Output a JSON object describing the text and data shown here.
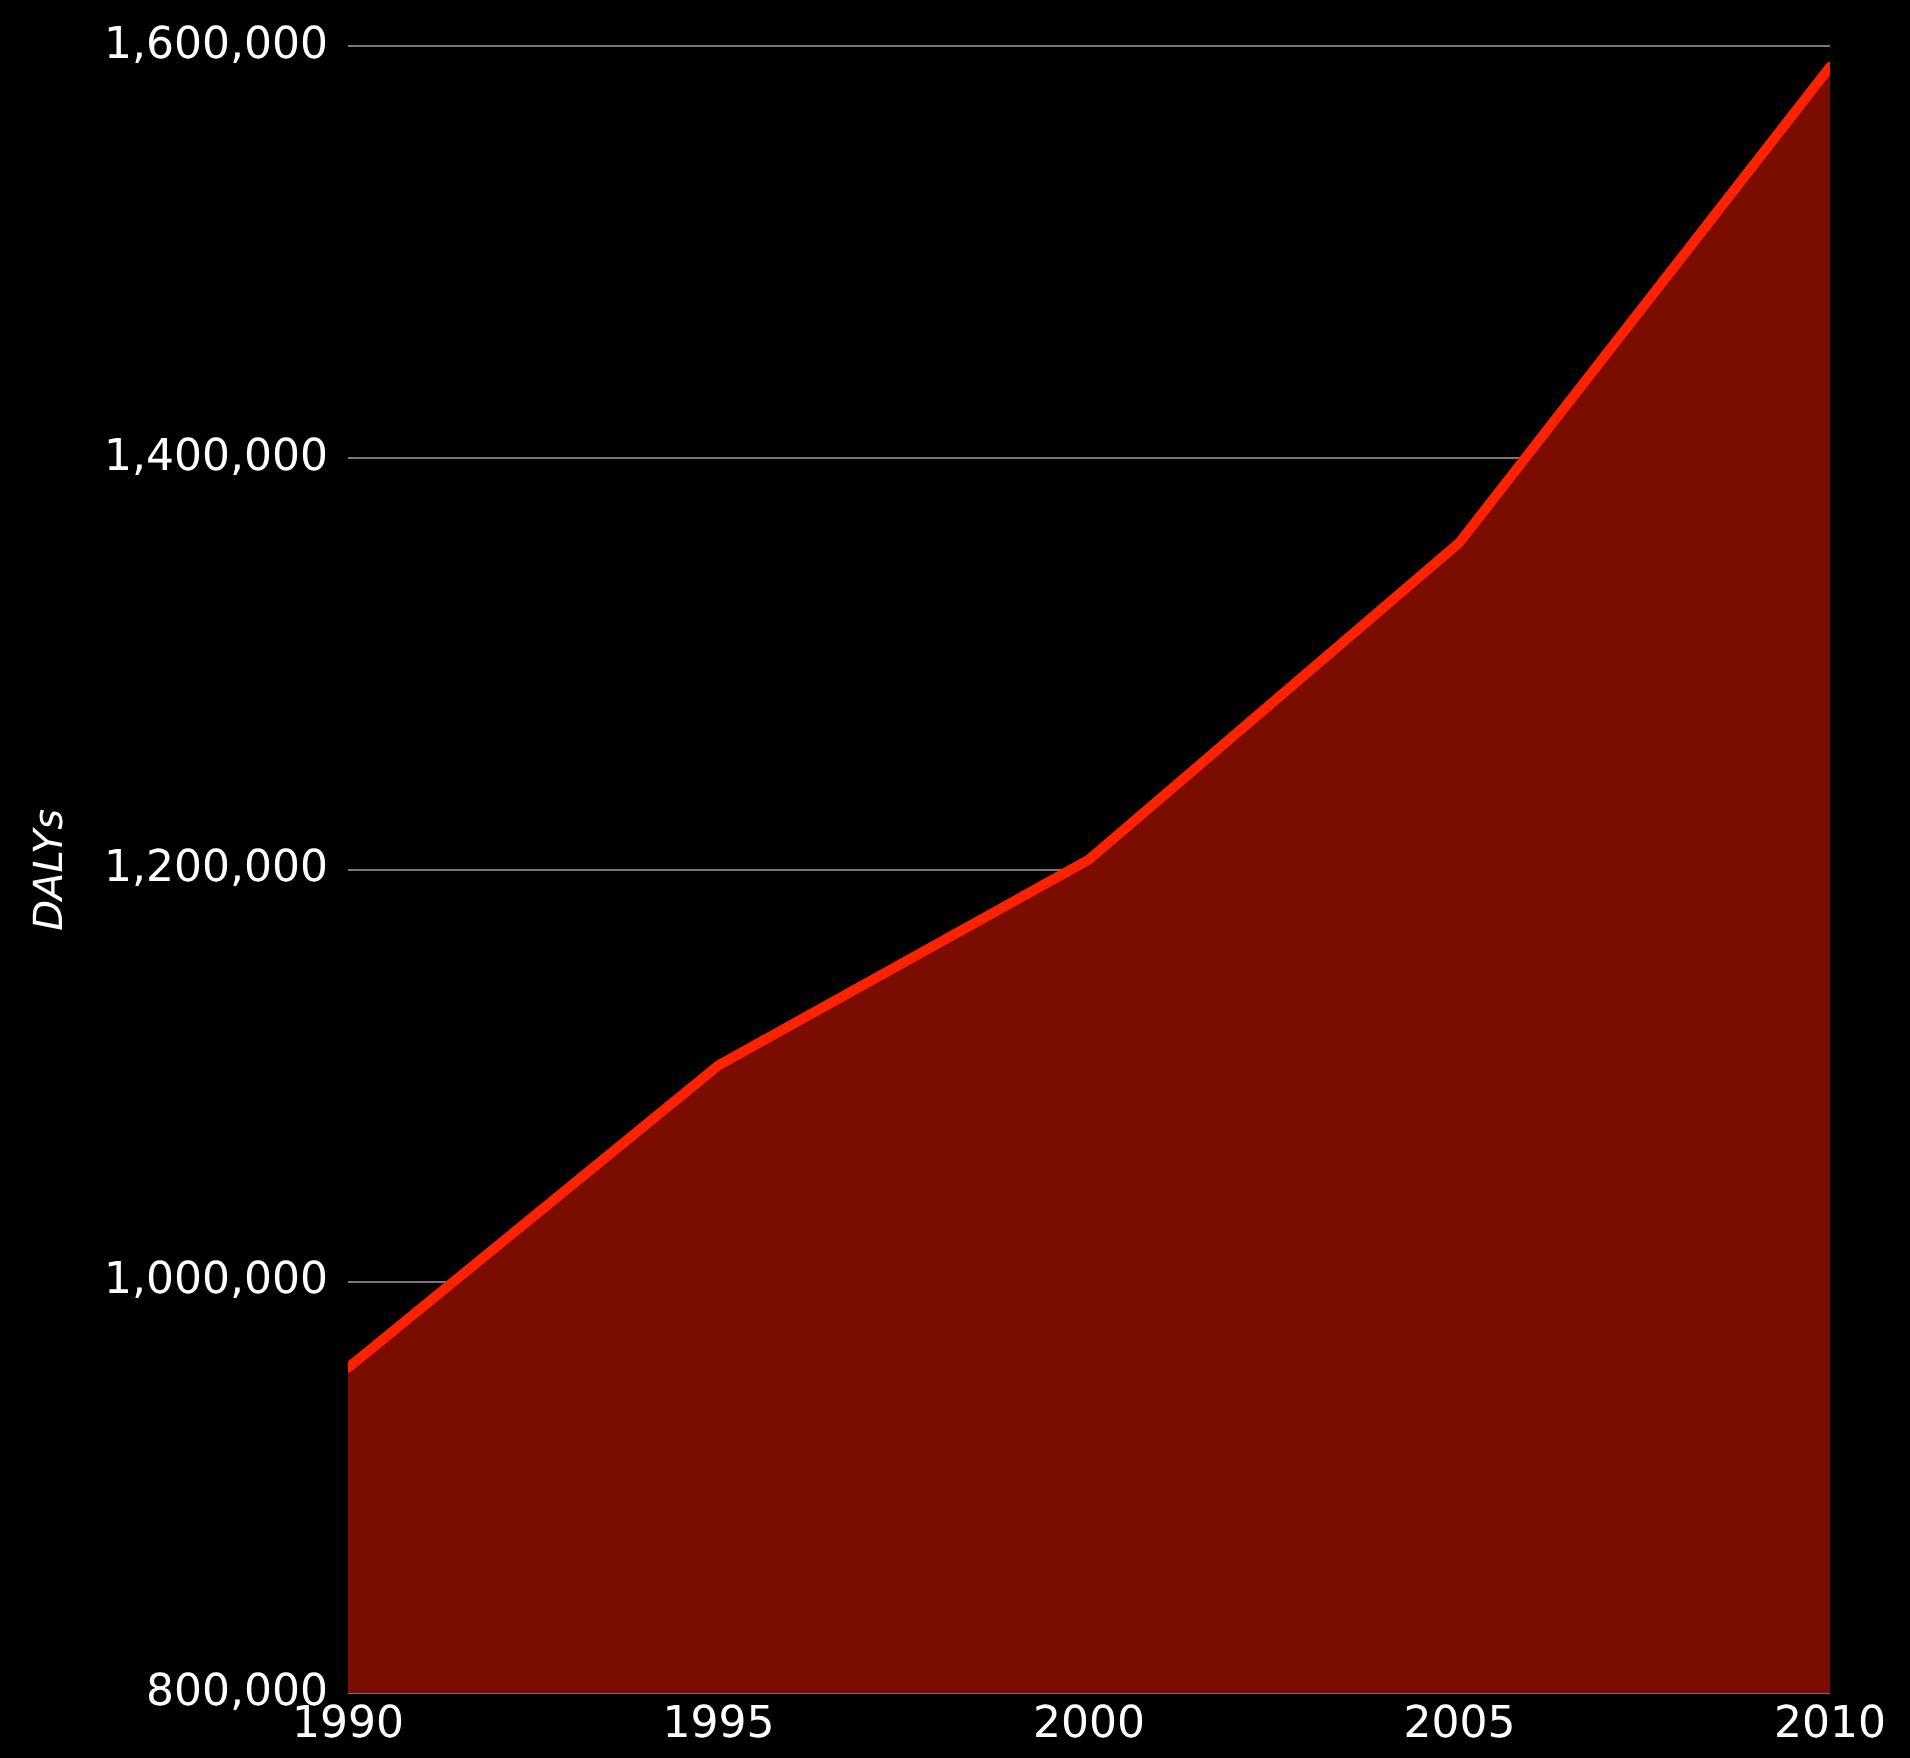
{
  "chart_data": {
    "type": "area",
    "ylabel": "DALYs",
    "x": [
      1990,
      1995,
      2000,
      2005,
      2010
    ],
    "series": [
      {
        "color": "#ff2200",
        "values": [
          958000,
          1105000,
          1205000,
          1359000,
          1590000
        ]
      }
    ],
    "xlim": [
      1990,
      2010
    ],
    "xticks": [
      1990,
      1995,
      2000,
      2005,
      2010
    ],
    "ylim": [
      800000,
      1600000
    ],
    "yticks": [
      {
        "value": 800000,
        "label": "800,000"
      },
      {
        "value": 1000000,
        "label": "1,000,000"
      },
      {
        "value": 1200000,
        "label": "1,200,000"
      },
      {
        "value": 1400000,
        "label": "1,400,000"
      },
      {
        "value": 1600000,
        "label": "1,600,000"
      }
    ],
    "grid": "y",
    "legend": false
  }
}
